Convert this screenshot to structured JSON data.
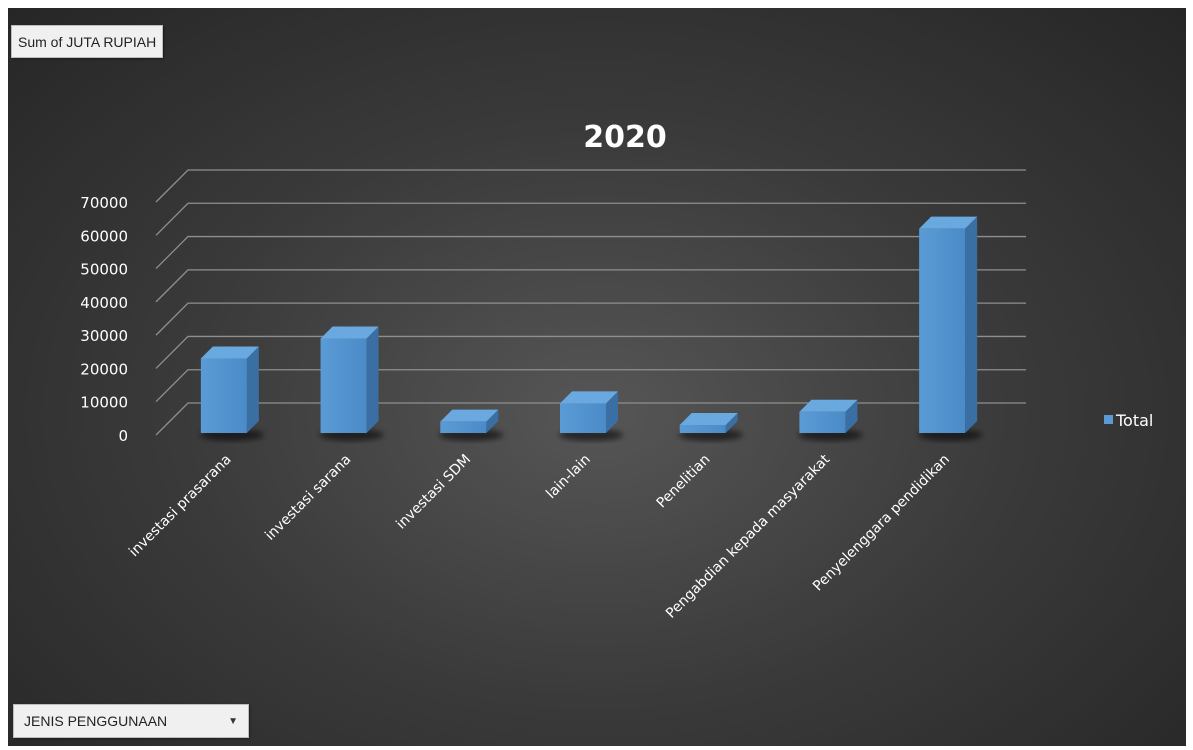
{
  "value_field_button": "Sum of JUTA RUPIAH",
  "axis_field_button": {
    "label": "JENIS PENGGUNAAN",
    "dropdown_icon": "chevron-down-icon"
  },
  "colors": {
    "bar": "#5b9bd5",
    "background": "#404040",
    "gridline": "#8a8a8a",
    "text": "#ffffff"
  },
  "chart_data": {
    "type": "bar",
    "style": "3d-clustered-column",
    "title": "2020",
    "categories": [
      "investasi prasarana",
      "investasi sarana",
      "investasi SDM",
      "lain-lain",
      "Penelitian",
      "Pengabdian kepada masyarakat",
      "Penyelenggara pendidikan"
    ],
    "series": [
      {
        "name": "Total",
        "values": [
          23000,
          29000,
          4000,
          9500,
          3000,
          7000,
          62000
        ]
      }
    ],
    "ylim": [
      0,
      70000
    ],
    "yticks": [
      "0",
      "10000",
      "20000",
      "30000",
      "40000",
      "50000",
      "60000",
      "70000"
    ],
    "grid": true,
    "legend": "right"
  }
}
